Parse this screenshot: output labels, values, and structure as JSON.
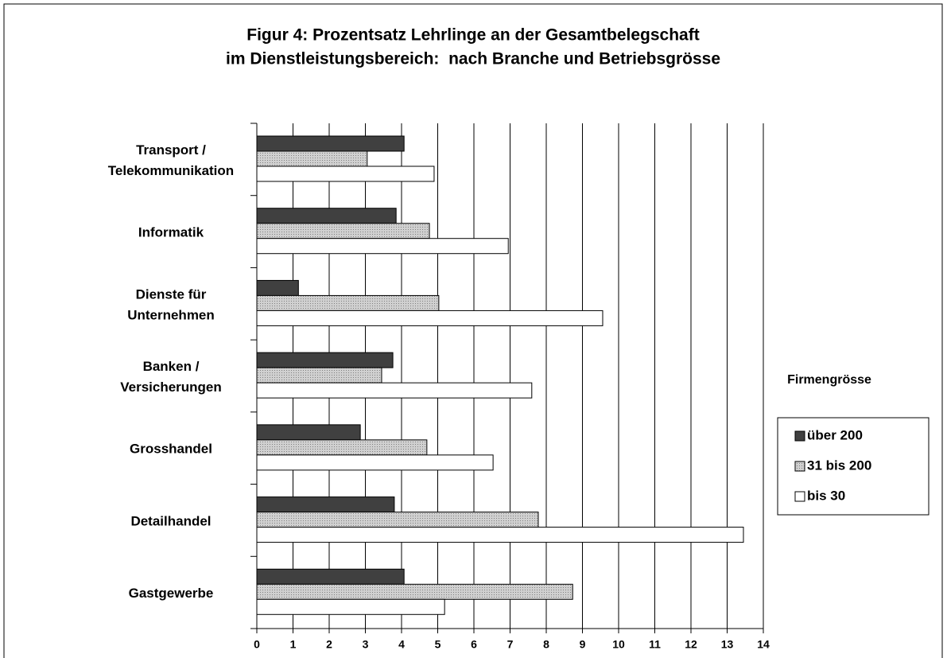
{
  "chart_data": {
    "type": "barh",
    "title": [
      "Figur 4: Prozentsatz Lehrlinge an der Gesamtbelegschaft",
      "im Dienstleistungsbereich:  nach Branche und Betriebsgrösse"
    ],
    "categories": [
      [
        "Transport /",
        "Telekommunikation"
      ],
      [
        "Informatik"
      ],
      [
        "Dienste für",
        "Unternehmen"
      ],
      [
        "Banken /",
        "Versicherungen"
      ],
      [
        "Grosshandel"
      ],
      [
        "Detailhandel"
      ],
      [
        "Gastgewerbe"
      ]
    ],
    "series": [
      {
        "name": "über 200",
        "color": "#404040",
        "values": [
          4.07,
          3.85,
          1.15,
          3.76,
          2.86,
          3.8,
          4.07
        ]
      },
      {
        "name": "31 bis 200",
        "color": "#c0c0c0",
        "values": [
          3.05,
          4.77,
          5.03,
          3.45,
          4.7,
          7.78,
          8.73
        ]
      },
      {
        "name": "bis 30",
        "color": "#ffffff",
        "values": [
          4.9,
          6.95,
          9.56,
          7.6,
          6.53,
          13.45,
          5.19
        ]
      }
    ],
    "legend_title": "Firmengrösse",
    "xlim": [
      0,
      14
    ],
    "xticks": [
      0,
      1,
      2,
      3,
      4,
      5,
      6,
      7,
      8,
      9,
      10,
      11,
      12,
      13,
      14
    ],
    "grid": true,
    "legend": "right"
  }
}
